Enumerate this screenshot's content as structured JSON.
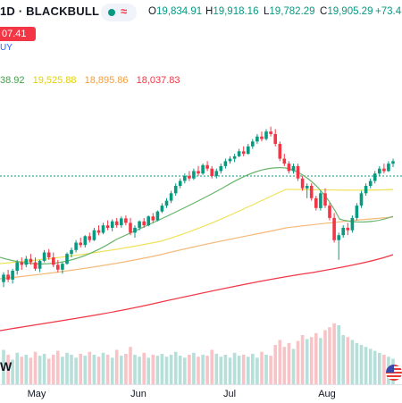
{
  "header": {
    "title": "1D · BLACKBULL",
    "ohlc": [
      {
        "key": "O",
        "value": "19,834.91"
      },
      {
        "key": "H",
        "value": "19,918.16"
      },
      {
        "key": "L",
        "value": "19,782.29"
      },
      {
        "key": "C",
        "value": "19,905.29"
      },
      {
        "key": "",
        "value": "+73.4"
      }
    ]
  },
  "price_label": "07.41",
  "buy_label": "UY",
  "moving_averages": [
    {
      "value": "38.92",
      "color": "#43a047"
    },
    {
      "value": "19,525.88",
      "color": "#e6d200"
    },
    {
      "value": "18,895.86",
      "color": "#f59d3a"
    },
    {
      "value": "18,037.83",
      "color": "#f23645"
    }
  ],
  "watermark_letter": "W",
  "colors": {
    "up": "#089981",
    "down": "#f23645",
    "vol_up": "#b5dfd8",
    "vol_down": "#f8c3c6"
  },
  "chart_data": {
    "type": "candlestick",
    "x_ticks": [
      "May",
      "Jun",
      "Jul",
      "Aug"
    ],
    "candles": [
      [
        17450,
        17650,
        17350,
        17600
      ],
      [
        17600,
        17700,
        17450,
        17500
      ],
      [
        17500,
        17720,
        17420,
        17680
      ],
      [
        17680,
        17900,
        17600,
        17850
      ],
      [
        17850,
        17950,
        17700,
        17800
      ],
      [
        17800,
        17980,
        17750,
        17920
      ],
      [
        17920,
        18020,
        17800,
        17850
      ],
      [
        17850,
        17950,
        17680,
        17720
      ],
      [
        17720,
        17900,
        17650,
        17880
      ],
      [
        17880,
        18100,
        17850,
        18050
      ],
      [
        18050,
        18120,
        17900,
        17950
      ],
      [
        17950,
        18050,
        17750,
        17800
      ],
      [
        17800,
        17900,
        17650,
        17700
      ],
      [
        17700,
        17850,
        17620,
        17820
      ],
      [
        17820,
        18050,
        17800,
        18020
      ],
      [
        18020,
        18150,
        17950,
        18100
      ],
      [
        18100,
        18300,
        18050,
        18250
      ],
      [
        18250,
        18350,
        18150,
        18200
      ],
      [
        18200,
        18400,
        18150,
        18380
      ],
      [
        18380,
        18450,
        18250,
        18300
      ],
      [
        18300,
        18550,
        18280,
        18500
      ],
      [
        18500,
        18600,
        18400,
        18450
      ],
      [
        18450,
        18650,
        18420,
        18600
      ],
      [
        18600,
        18700,
        18500,
        18550
      ],
      [
        18550,
        18720,
        18480,
        18680
      ],
      [
        18680,
        18750,
        18550,
        18600
      ],
      [
        18600,
        18780,
        18550,
        18740
      ],
      [
        18740,
        18800,
        18600,
        18650
      ],
      [
        18650,
        18750,
        18400,
        18450
      ],
      [
        18450,
        18600,
        18350,
        18550
      ],
      [
        18550,
        18700,
        18500,
        18680
      ],
      [
        18680,
        18750,
        18550,
        18600
      ],
      [
        18600,
        18800,
        18580,
        18780
      ],
      [
        18780,
        18850,
        18650,
        18700
      ],
      [
        18700,
        18900,
        18680,
        18880
      ],
      [
        18880,
        19050,
        18850,
        19000
      ],
      [
        19000,
        19150,
        18950,
        19100
      ],
      [
        19100,
        19300,
        19050,
        19250
      ],
      [
        19250,
        19450,
        19200,
        19400
      ],
      [
        19400,
        19550,
        19350,
        19500
      ],
      [
        19500,
        19650,
        19450,
        19600
      ],
      [
        19600,
        19700,
        19500,
        19550
      ],
      [
        19550,
        19750,
        19520,
        19700
      ],
      [
        19700,
        19800,
        19600,
        19650
      ],
      [
        19650,
        19850,
        19620,
        19820
      ],
      [
        19820,
        19900,
        19700,
        19750
      ],
      [
        19750,
        19800,
        19550,
        19600
      ],
      [
        19600,
        19750,
        19550,
        19700
      ],
      [
        19700,
        19850,
        19650,
        19800
      ],
      [
        19800,
        19950,
        19750,
        19900
      ],
      [
        19900,
        20000,
        19850,
        19950
      ],
      [
        19950,
        20050,
        19880,
        20000
      ],
      [
        20000,
        20150,
        19980,
        20100
      ],
      [
        20100,
        20200,
        20000,
        20050
      ],
      [
        20050,
        20250,
        20030,
        20200
      ],
      [
        20200,
        20350,
        20150,
        20300
      ],
      [
        20300,
        20450,
        20250,
        20400
      ],
      [
        20400,
        20500,
        20300,
        20350
      ],
      [
        20350,
        20550,
        20320,
        20500
      ],
      [
        20500,
        20600,
        20400,
        20450
      ],
      [
        20450,
        20550,
        20200,
        20250
      ],
      [
        20250,
        20300,
        19900,
        19950
      ],
      [
        19950,
        20050,
        19800,
        19850
      ],
      [
        19850,
        19900,
        19650,
        19700
      ],
      [
        19700,
        19850,
        19650,
        19800
      ],
      [
        19800,
        19850,
        19500,
        19550
      ],
      [
        19550,
        19600,
        19300,
        19350
      ],
      [
        19350,
        19450,
        19150,
        19400
      ],
      [
        19400,
        19450,
        19100,
        19150
      ],
      [
        19150,
        19200,
        18900,
        18950
      ],
      [
        18950,
        19300,
        18900,
        19250
      ],
      [
        19250,
        19350,
        18950,
        19000
      ],
      [
        19000,
        19050,
        18700,
        18750
      ],
      [
        18750,
        18850,
        18250,
        18300
      ],
      [
        18300,
        18450,
        17900,
        18400
      ],
      [
        18400,
        18600,
        18350,
        18550
      ],
      [
        18550,
        18650,
        18400,
        18500
      ],
      [
        18500,
        18800,
        18450,
        18750
      ],
      [
        18750,
        19050,
        18700,
        19000
      ],
      [
        19000,
        19300,
        18950,
        19250
      ],
      [
        19250,
        19450,
        19200,
        19400
      ],
      [
        19400,
        19550,
        19350,
        19500
      ],
      [
        19500,
        19700,
        19450,
        19650
      ],
      [
        19650,
        19800,
        19600,
        19750
      ],
      [
        19750,
        19850,
        19650,
        19700
      ],
      [
        19700,
        19900,
        19680,
        19850
      ],
      [
        19850,
        19950,
        19780,
        19900
      ]
    ],
    "volume_levels": [
      0.35,
      0.3,
      0.25,
      0.32,
      0.28,
      0.3,
      0.27,
      0.33,
      0.29,
      0.31,
      0.26,
      0.3,
      0.34,
      0.28,
      0.32,
      0.3,
      0.27,
      0.31,
      0.29,
      0.33,
      0.3,
      0.28,
      0.32,
      0.3,
      0.27,
      0.35,
      0.29,
      0.31,
      0.38,
      0.3,
      0.28,
      0.32,
      0.27,
      0.3,
      0.29,
      0.31,
      0.28,
      0.3,
      0.33,
      0.29,
      0.27,
      0.3,
      0.32,
      0.28,
      0.3,
      0.29,
      0.35,
      0.31,
      0.28,
      0.3,
      0.27,
      0.32,
      0.29,
      0.3,
      0.28,
      0.31,
      0.27,
      0.33,
      0.3,
      0.29,
      0.4,
      0.45,
      0.38,
      0.42,
      0.36,
      0.44,
      0.5,
      0.46,
      0.48,
      0.52,
      0.47,
      0.55,
      0.58,
      0.62,
      0.6,
      0.5,
      0.48,
      0.45,
      0.42,
      0.4,
      0.38,
      0.36,
      0.34,
      0.32,
      0.3,
      0.28,
      0.26
    ]
  }
}
